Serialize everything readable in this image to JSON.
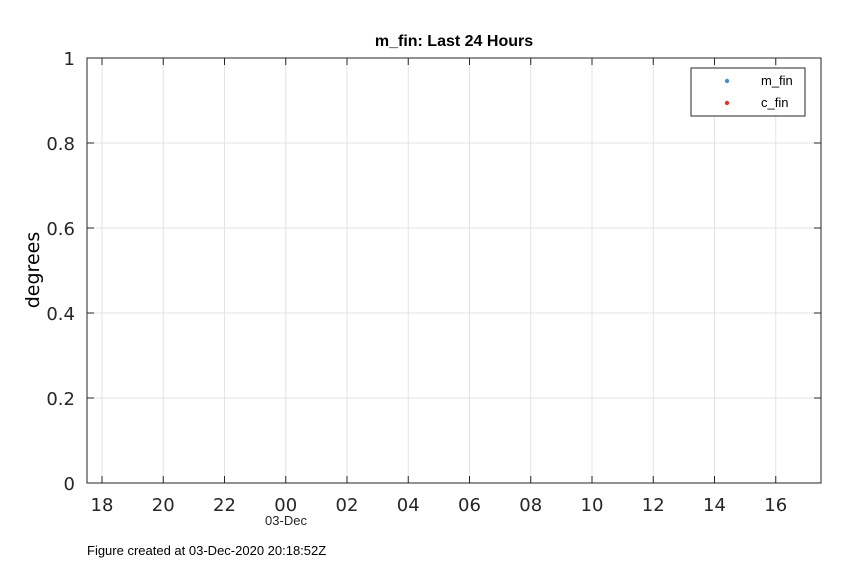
{
  "chart_data": {
    "type": "scatter",
    "title": "m_fin: Last 24 Hours",
    "xlabel": "",
    "ylabel": "degrees",
    "x_tick_labels": [
      "18",
      "20",
      "22",
      "00",
      "02",
      "04",
      "06",
      "08",
      "10",
      "12",
      "14",
      "16"
    ],
    "x_date_label": "03-Dec",
    "y_tick_labels": [
      "1",
      "0.8",
      "0.6",
      "0.4",
      "0.2",
      "0"
    ],
    "ylim": [
      0,
      1
    ],
    "grid": true,
    "legend_position": "top-right",
    "series": [
      {
        "name": "m_fin",
        "color": "#4a90c8",
        "points": []
      },
      {
        "name": "c_fin",
        "color": "#e8302a",
        "points": []
      }
    ]
  },
  "caption": "Figure created at 03-Dec-2020 20:18:52Z"
}
